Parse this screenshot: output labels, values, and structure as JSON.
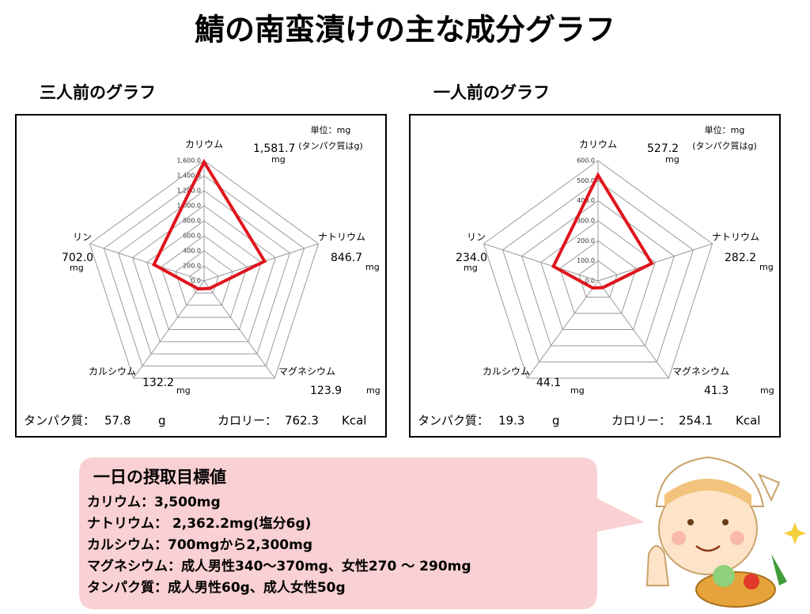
{
  "title": "鯖の南蛮漬けの主な成分グラフ",
  "chart_data": [
    {
      "type": "radar",
      "title": "三人前のグラフ",
      "unit_note": "単位：mg",
      "unit_note_sub": "(タンパク質はg)",
      "categories": [
        "カリウム",
        "ナトリウム",
        "マグネシウム",
        "カルシウム",
        "リン"
      ],
      "values": [
        1581.7,
        846.7,
        123.9,
        132.2,
        702.0
      ],
      "value_labels": [
        "1,581.7",
        "846.7",
        "123.9",
        "132.2",
        "702.0"
      ],
      "value_unit": "mg",
      "color": "#e0141b",
      "rlim": [
        0,
        1600
      ],
      "rticks": [
        {
          "value": 0,
          "label": "0.0"
        },
        {
          "value": 200,
          "label": "200.0"
        },
        {
          "value": 400,
          "label": "400.0"
        },
        {
          "value": 600,
          "label": "600.0"
        },
        {
          "value": 800,
          "label": "800.0"
        },
        {
          "value": 1000,
          "label": "1,000.0"
        },
        {
          "value": 1200,
          "label": "1,200.0"
        },
        {
          "value": 1400,
          "label": "1,400.0"
        },
        {
          "value": 1600,
          "label": "1,600.0"
        }
      ],
      "protein_label": "タンパク質：",
      "protein": 57.8,
      "protein_unit": "g",
      "calorie_label": "カロリー：",
      "calorie": 762.3,
      "calorie_unit": "Kcal"
    },
    {
      "type": "radar",
      "title": "一人前のグラフ",
      "unit_note": "単位：mg",
      "unit_note_sub": "(タンパク質はg)",
      "categories": [
        "カリウム",
        "ナトリウム",
        "マグネシウム",
        "カルシウム",
        "リン"
      ],
      "values": [
        527.2,
        282.2,
        41.3,
        44.1,
        234.0
      ],
      "value_labels": [
        "527.2",
        "282.2",
        "41.3",
        "44.1",
        "234.0"
      ],
      "value_unit": "mg",
      "color": "#e0141b",
      "rlim": [
        0,
        600
      ],
      "rticks": [
        {
          "value": 0,
          "label": "0.0"
        },
        {
          "value": 100,
          "label": "100.0"
        },
        {
          "value": 200,
          "label": "200.0"
        },
        {
          "value": 300,
          "label": "300.0"
        },
        {
          "value": 400,
          "label": "400.0"
        },
        {
          "value": 500,
          "label": "500.0"
        },
        {
          "value": 600,
          "label": "600.0"
        }
      ],
      "protein_label": "タンパク質：",
      "protein": 19.3,
      "protein_unit": "g",
      "calorie_label": "カロリー：",
      "calorie": 254.1,
      "calorie_unit": "Kcal"
    }
  ],
  "goal": {
    "title": "一日の摂取目標値",
    "lines": [
      "カリウム：3,500mg",
      "ナトリウム： 2,362.2mg(塩分6g)",
      "カルシウム：700mgから2,300mg",
      "マグネシウム：成人男性340～370mg、女性270 ～ 290mg",
      "タンパク質：成人男性60g、成人女性50g"
    ]
  }
}
